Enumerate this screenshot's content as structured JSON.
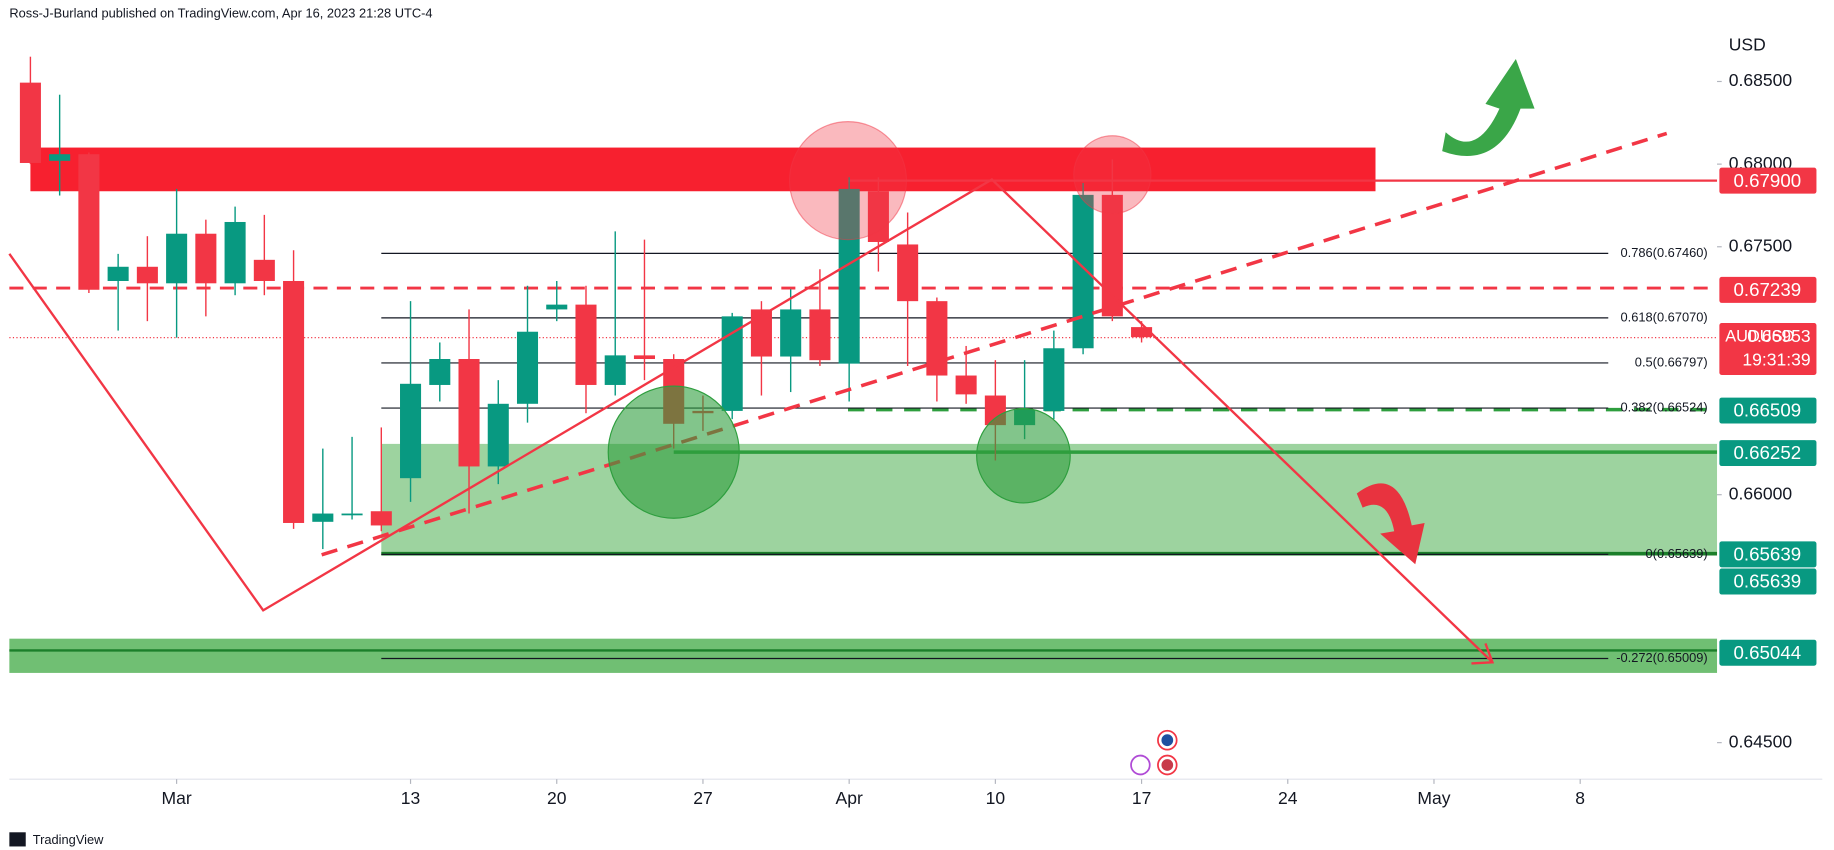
{
  "chart_data": {
    "type": "candlestick",
    "header": "Ross-J-Burland published on TradingView.com, Apr 16, 2023 21:28 UTC-4",
    "currency": "USD",
    "symbol": "AUDUSD",
    "countdown": "19:31:39",
    "footer": "TradingView",
    "up_color": "#089981",
    "down_color": "#f23645",
    "x": [
      0,
      1,
      2,
      3,
      4,
      5,
      6,
      7,
      8,
      9,
      10,
      11,
      12,
      13,
      14,
      15,
      16,
      17,
      18,
      19,
      20,
      21,
      22,
      23,
      24,
      25,
      26,
      27,
      28,
      29,
      30,
      31,
      32,
      33,
      34,
      35,
      36,
      37,
      38
    ],
    "open": [
      0.68493,
      0.6802,
      0.6806,
      0.67293,
      0.67379,
      0.67279,
      0.67579,
      0.67279,
      0.67421,
      0.67293,
      0.65836,
      0.65879,
      0.659,
      0.661,
      0.66664,
      0.66821,
      0.66171,
      0.6655,
      0.67121,
      0.6715,
      0.66664,
      0.66843,
      0.66821,
      0.66507,
      0.66507,
      0.67121,
      0.66836,
      0.67121,
      0.66793,
      0.67836,
      0.67514,
      0.67171,
      0.66721,
      0.666,
      0.66421,
      0.66507,
      0.66886,
      0.67814,
      0.67014
    ],
    "high": [
      0.6865,
      0.6842,
      0.6807,
      0.67457,
      0.67564,
      0.6785,
      0.67664,
      0.67743,
      0.67693,
      0.67479,
      0.66279,
      0.6635,
      0.66407,
      0.67171,
      0.66921,
      0.67121,
      0.66693,
      0.67264,
      0.67293,
      0.67264,
      0.67593,
      0.67543,
      0.6685,
      0.666,
      0.671,
      0.67171,
      0.67243,
      0.67364,
      0.67921,
      0.6792,
      0.67707,
      0.67193,
      0.669,
      0.66814,
      0.66814,
      0.66993,
      0.67886,
      0.68029,
      0.6705
    ],
    "low": [
      0.68,
      0.6781,
      0.6722,
      0.66993,
      0.6705,
      0.6695,
      0.67079,
      0.67207,
      0.67207,
      0.65793,
      0.65671,
      0.6585,
      0.65779,
      0.65957,
      0.66564,
      0.65886,
      0.66064,
      0.66436,
      0.6705,
      0.66493,
      0.666,
      0.66693,
      0.66279,
      0.66386,
      0.66457,
      0.666,
      0.66621,
      0.66779,
      0.66564,
      0.6735,
      0.66779,
      0.66564,
      0.6655,
      0.66207,
      0.66336,
      0.66457,
      0.6685,
      0.6705,
      0.66921
    ],
    "close": [
      0.68007,
      0.6806,
      0.6724,
      0.67379,
      0.67279,
      0.67579,
      0.67279,
      0.6765,
      0.67293,
      0.65829,
      0.65886,
      0.65886,
      0.65814,
      0.66671,
      0.66821,
      0.66171,
      0.6655,
      0.66986,
      0.6715,
      0.66664,
      0.66843,
      0.66821,
      0.66429,
      0.66493,
      0.67079,
      0.66836,
      0.67121,
      0.66814,
      0.6785,
      0.67529,
      0.67171,
      0.66721,
      0.66607,
      0.66421,
      0.66514,
      0.66886,
      0.67814,
      0.67079,
      0.66953
    ],
    "xlim": [
      -0.72,
      57.68
    ],
    "ylim": [
      0.68993,
      0.64279
    ],
    "xticks": [
      {
        "value": 5,
        "label": "Mar"
      },
      {
        "value": 13,
        "label": "13"
      },
      {
        "value": 18,
        "label": "20"
      },
      {
        "value": 23,
        "label": "27"
      },
      {
        "value": 28,
        "label": "Apr"
      },
      {
        "value": 33,
        "label": "10"
      },
      {
        "value": 38,
        "label": "17"
      },
      {
        "value": 43,
        "label": "24"
      },
      {
        "value": 48,
        "label": "May"
      },
      {
        "value": 53,
        "label": "8"
      }
    ],
    "yticks": [
      {
        "value": 0.685,
        "label": "0.68500"
      },
      {
        "value": 0.68,
        "label": "0.68000"
      },
      {
        "value": 0.675,
        "label": "0.67500"
      },
      {
        "value": 0.66,
        "label": "0.66000"
      },
      {
        "value": 0.645,
        "label": "0.64500"
      }
    ],
    "fib_levels": [
      {
        "value": 0.6746,
        "label": "0.786(0.67460)"
      },
      {
        "value": 0.6707,
        "label": "0.618(0.67070)"
      },
      {
        "value": 0.66797,
        "label": "0.5(0.66797)"
      },
      {
        "value": 0.66524,
        "label": "0.382(0.66524)"
      },
      {
        "value": 0.65639,
        "label": "0(0.65639)"
      },
      {
        "value": 0.65009,
        "label": "-0.272(0.65009)"
      }
    ],
    "price_labels": [
      {
        "value": 0.679,
        "label": "0.67900",
        "color": "#f23645"
      },
      {
        "value": 0.67239,
        "label": "0.67239",
        "color": "#f23645"
      },
      {
        "value": 0.66953,
        "label": "0.66953",
        "color": "#f23645"
      },
      {
        "value": 0.66509,
        "label": "0.66509",
        "color": "#089981"
      },
      {
        "value": 0.66252,
        "label": "0.66252",
        "color": "#089981"
      },
      {
        "value": 0.65639,
        "label": "0.65639",
        "color": "#089981"
      },
      {
        "value": 0.65639,
        "label": "0.65639",
        "color": "#089981"
      },
      {
        "value": 0.65044,
        "label": "0.65044",
        "color": "#089981"
      }
    ]
  }
}
